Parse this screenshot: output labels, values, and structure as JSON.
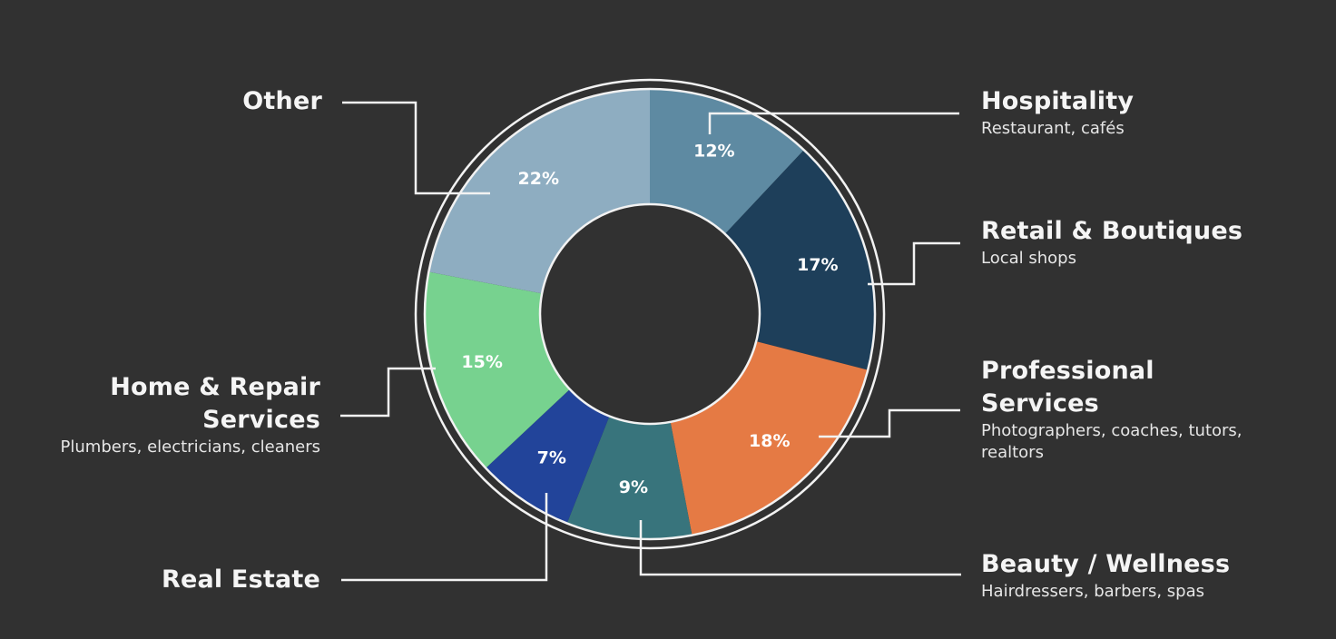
{
  "chart_data": {
    "type": "pie",
    "variant": "donut",
    "title": "",
    "start_angle_deg": 0,
    "direction": "clockwise",
    "slices": [
      {
        "name": "Hospitality",
        "description": "Restaurant, cafés",
        "value": 12,
        "label": "12%",
        "color": "#5e8aa2"
      },
      {
        "name": "Retail & Boutiques",
        "description": "Local shops",
        "value": 17,
        "label": "17%",
        "color": "#1e3f5a"
      },
      {
        "name": "Professional Services",
        "description": "Photographers, coaches, tutors, realtors",
        "value": 18,
        "label": "18%",
        "color": "#e57a44"
      },
      {
        "name": "Beauty / Wellness",
        "description": "Hairdressers, barbers, spas",
        "value": 9,
        "label": "9%",
        "color": "#38747c"
      },
      {
        "name": "Real Estate",
        "description": "",
        "value": 7,
        "label": "7%",
        "color": "#22449a"
      },
      {
        "name": "Home & Repair Services",
        "description": "Plumbers, electricians, cleaners",
        "value": 15,
        "label": "15%",
        "color": "#77d28f"
      },
      {
        "name": "Other",
        "description": "",
        "value": 22,
        "label": "22%",
        "color": "#8eadc1"
      }
    ],
    "legend_position": "callouts"
  },
  "labels": {
    "hospitality": {
      "title": "Hospitality",
      "sub": "Restaurant, cafés"
    },
    "retail": {
      "title": "Retail & Boutiques",
      "sub": "Local shops"
    },
    "professional": {
      "title_line1": "Professional",
      "title_line2": "Services",
      "sub_line1": "Photographers, coaches, tutors,",
      "sub_line2": "realtors"
    },
    "beauty": {
      "title": "Beauty / Wellness",
      "sub": "Hairdressers, barbers, spas"
    },
    "real_estate": {
      "title": "Real Estate"
    },
    "home_repair": {
      "title_line1": "Home & Repair",
      "title_line2": "Services",
      "sub": "Plumbers, electricians, cleaners"
    },
    "other": {
      "title": "Other"
    }
  },
  "colors": {
    "background": "#313131",
    "ring": "#f2f2f2",
    "text": "#f5f5f5"
  }
}
